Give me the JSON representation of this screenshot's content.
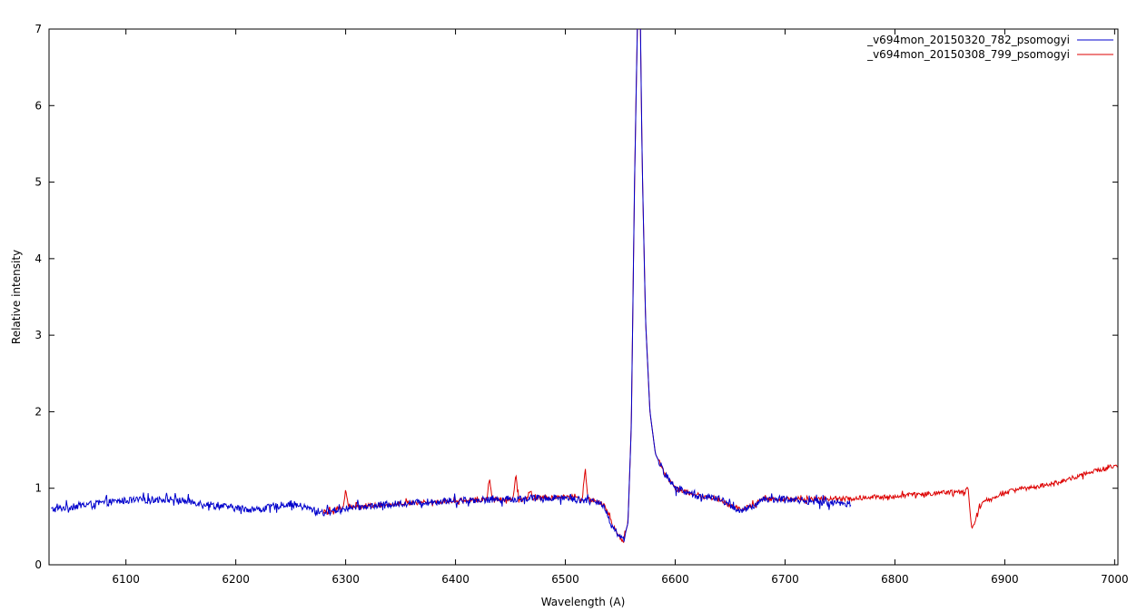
{
  "chart_data": {
    "type": "line",
    "title": "",
    "xlabel": "Wavelength (A)",
    "ylabel": "Relative intensity",
    "xlim": [
      6030,
      7003
    ],
    "ylim": [
      0,
      7
    ],
    "x_ticks": [
      6100,
      6200,
      6300,
      6400,
      6500,
      6600,
      6700,
      6800,
      6900,
      7000
    ],
    "y_ticks": [
      0,
      1,
      2,
      3,
      4,
      5,
      6,
      7
    ],
    "grid": false,
    "legend_position": "top-right",
    "series": [
      {
        "name": "_v694mon_20150320_782_psomogyi",
        "color": "#0000cc",
        "x_range": [
          6032,
          6760
        ],
        "noise": 0.045,
        "points": [
          [
            6032,
            0.72
          ],
          [
            6060,
            0.78
          ],
          [
            6100,
            0.84
          ],
          [
            6140,
            0.86
          ],
          [
            6160,
            0.82
          ],
          [
            6200,
            0.74
          ],
          [
            6220,
            0.72
          ],
          [
            6250,
            0.8
          ],
          [
            6280,
            0.68
          ],
          [
            6300,
            0.74
          ],
          [
            6350,
            0.8
          ],
          [
            6400,
            0.84
          ],
          [
            6450,
            0.86
          ],
          [
            6500,
            0.88
          ],
          [
            6520,
            0.84
          ],
          [
            6535,
            0.78
          ],
          [
            6542,
            0.52
          ],
          [
            6548,
            0.4
          ],
          [
            6553,
            0.32
          ],
          [
            6557,
            0.55
          ],
          [
            6560,
            1.8
          ],
          [
            6563,
            5.0
          ],
          [
            6566,
            7.4
          ],
          [
            6568,
            7.4
          ],
          [
            6570,
            5.2
          ],
          [
            6573,
            3.2
          ],
          [
            6577,
            2.0
          ],
          [
            6582,
            1.45
          ],
          [
            6590,
            1.2
          ],
          [
            6600,
            1.0
          ],
          [
            6620,
            0.9
          ],
          [
            6640,
            0.86
          ],
          [
            6650,
            0.78
          ],
          [
            6660,
            0.7
          ],
          [
            6670,
            0.75
          ],
          [
            6680,
            0.86
          ],
          [
            6700,
            0.86
          ],
          [
            6730,
            0.82
          ],
          [
            6760,
            0.8
          ]
        ],
        "spikes": []
      },
      {
        "name": "_v694mon_20150308_799_psomogyi",
        "color": "#dd0000",
        "x_range": [
          6280,
          7003
        ],
        "noise": 0.03,
        "points": [
          [
            6280,
            0.7
          ],
          [
            6300,
            0.75
          ],
          [
            6350,
            0.8
          ],
          [
            6400,
            0.84
          ],
          [
            6450,
            0.86
          ],
          [
            6500,
            0.88
          ],
          [
            6520,
            0.86
          ],
          [
            6535,
            0.8
          ],
          [
            6542,
            0.55
          ],
          [
            6548,
            0.38
          ],
          [
            6553,
            0.32
          ],
          [
            6557,
            0.55
          ],
          [
            6560,
            1.8
          ],
          [
            6563,
            5.0
          ],
          [
            6566,
            7.4
          ],
          [
            6568,
            7.4
          ],
          [
            6570,
            5.2
          ],
          [
            6573,
            3.2
          ],
          [
            6577,
            2.0
          ],
          [
            6582,
            1.45
          ],
          [
            6590,
            1.2
          ],
          [
            6600,
            1.0
          ],
          [
            6620,
            0.9
          ],
          [
            6640,
            0.86
          ],
          [
            6650,
            0.78
          ],
          [
            6660,
            0.72
          ],
          [
            6670,
            0.78
          ],
          [
            6680,
            0.86
          ],
          [
            6700,
            0.86
          ],
          [
            6750,
            0.86
          ],
          [
            6800,
            0.9
          ],
          [
            6850,
            0.95
          ],
          [
            6865,
            0.95
          ],
          [
            6868,
            0.55
          ],
          [
            6871,
            0.5
          ],
          [
            6876,
            0.72
          ],
          [
            6880,
            0.8
          ],
          [
            6900,
            0.95
          ],
          [
            6950,
            1.08
          ],
          [
            6980,
            1.22
          ],
          [
            7003,
            1.3
          ]
        ],
        "spikes": [
          [
            6300,
            0.22
          ],
          [
            6431,
            0.3
          ],
          [
            6455,
            0.35
          ],
          [
            6468,
            0.12
          ],
          [
            6518,
            0.4
          ],
          [
            6867,
            0.3
          ]
        ]
      }
    ]
  }
}
